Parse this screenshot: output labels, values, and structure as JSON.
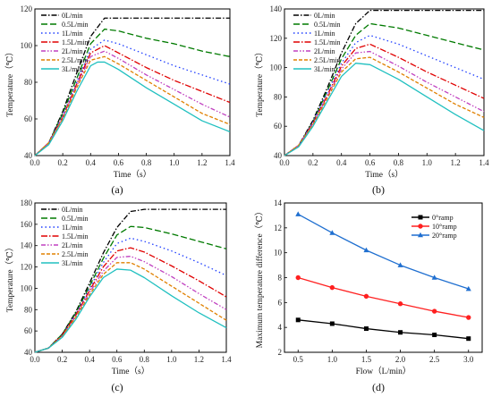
{
  "chart_data": [
    {
      "type": "line",
      "panel_label": "(a)",
      "xlabel": "Time（s）",
      "ylabel": "Temperature（℃）",
      "xlim": [
        0.0,
        1.4
      ],
      "ylim": [
        40,
        120
      ],
      "xticks": [
        "0.0",
        "0.2",
        "0.4",
        "0.6",
        "0.8",
        "1.0",
        "1.2",
        "1.4"
      ],
      "yticks": [
        "40",
        "60",
        "80",
        "100",
        "120"
      ],
      "legend_position": "top-left",
      "grid": false,
      "series": [
        {
          "name": "0L/min",
          "color": "#000000",
          "dash": "6,2,1.5,2",
          "x": [
            0,
            0.1,
            0.2,
            0.3,
            0.4,
            0.5,
            0.6,
            0.8,
            1.0,
            1.2,
            1.4
          ],
          "y": [
            40,
            47,
            64,
            85,
            105,
            115,
            115,
            115,
            115,
            115,
            115
          ]
        },
        {
          "name": "0.5L/min",
          "color": "#007a00",
          "dash": "7,3",
          "x": [
            0,
            0.1,
            0.2,
            0.3,
            0.4,
            0.5,
            0.6,
            0.8,
            1.0,
            1.2,
            1.4
          ],
          "y": [
            40,
            47,
            63,
            82,
            101,
            109,
            108,
            104,
            101,
            97,
            94
          ]
        },
        {
          "name": "1L/min",
          "color": "#1f3fff",
          "dash": "1.5,3",
          "x": [
            0,
            0.1,
            0.2,
            0.3,
            0.4,
            0.5,
            0.6,
            0.8,
            1.0,
            1.2,
            1.4
          ],
          "y": [
            40,
            47,
            62,
            80,
            98,
            103,
            101,
            95,
            89,
            84,
            79
          ]
        },
        {
          "name": "1.5L/min",
          "color": "#e00000",
          "dash": "7,2,1.5,2",
          "x": [
            0,
            0.1,
            0.2,
            0.3,
            0.4,
            0.5,
            0.6,
            0.8,
            1.0,
            1.2,
            1.4
          ],
          "y": [
            40,
            47,
            61,
            79,
            96,
            100,
            96,
            88,
            81,
            75,
            69
          ]
        },
        {
          "name": "2L/min",
          "color": "#c040c0",
          "dash": "5,2,1.5,2,1.5,2",
          "x": [
            0,
            0.1,
            0.2,
            0.3,
            0.4,
            0.5,
            0.6,
            0.8,
            1.0,
            1.2,
            1.4
          ],
          "y": [
            40,
            47,
            61,
            78,
            94,
            97,
            93,
            84,
            76,
            68,
            61
          ]
        },
        {
          "name": "2.5L/min",
          "color": "#e08000",
          "dash": "4,2",
          "x": [
            0,
            0.1,
            0.2,
            0.3,
            0.4,
            0.5,
            0.6,
            0.8,
            1.0,
            1.2,
            1.4
          ],
          "y": [
            40,
            47,
            60,
            77,
            92,
            94,
            90,
            81,
            72,
            63,
            57
          ]
        },
        {
          "name": "3L/min",
          "color": "#20c0c0",
          "dash": "",
          "x": [
            0,
            0.1,
            0.2,
            0.3,
            0.4,
            0.45,
            0.5,
            0.6,
            0.8,
            1.0,
            1.2,
            1.4
          ],
          "y": [
            40,
            46,
            59,
            75,
            89,
            91,
            91,
            87,
            77,
            68,
            59,
            53
          ]
        }
      ]
    },
    {
      "type": "line",
      "panel_label": "(b)",
      "xlabel": "Time（s）",
      "ylabel": "Temperature（℃）",
      "xlim": [
        0.0,
        1.4
      ],
      "ylim": [
        40,
        140
      ],
      "xticks": [
        "0.0",
        "0.2",
        "0.4",
        "0.6",
        "0.8",
        "1.0",
        "1.2",
        "1.4"
      ],
      "yticks": [
        "40",
        "60",
        "80",
        "100",
        "120",
        "140"
      ],
      "legend_position": "top-left",
      "grid": false,
      "series": [
        {
          "name": "0L/min",
          "color": "#000000",
          "dash": "6,2,1.5,2",
          "x": [
            0,
            0.1,
            0.2,
            0.3,
            0.4,
            0.5,
            0.6,
            0.8,
            1.0,
            1.2,
            1.4
          ],
          "y": [
            40,
            47,
            64,
            86,
            110,
            130,
            139,
            139,
            139,
            139,
            139
          ]
        },
        {
          "name": "0.5L/min",
          "color": "#007a00",
          "dash": "7,3",
          "x": [
            0,
            0.1,
            0.2,
            0.3,
            0.4,
            0.5,
            0.6,
            0.8,
            1.0,
            1.2,
            1.4
          ],
          "y": [
            40,
            47,
            63,
            84,
            106,
            122,
            130,
            127,
            122,
            117,
            112
          ]
        },
        {
          "name": "1L/min",
          "color": "#1f3fff",
          "dash": "1.5,3",
          "x": [
            0,
            0.1,
            0.2,
            0.3,
            0.4,
            0.5,
            0.6,
            0.8,
            1.0,
            1.2,
            1.4
          ],
          "y": [
            40,
            47,
            63,
            83,
            103,
            117,
            122,
            116,
            108,
            100,
            92
          ]
        },
        {
          "name": "1.5L/min",
          "color": "#e00000",
          "dash": "7,2,1.5,2",
          "x": [
            0,
            0.1,
            0.2,
            0.3,
            0.4,
            0.5,
            0.6,
            0.8,
            1.0,
            1.2,
            1.4
          ],
          "y": [
            40,
            47,
            62,
            81,
            101,
            113,
            116,
            107,
            97,
            88,
            79
          ]
        },
        {
          "name": "2L/min",
          "color": "#c040c0",
          "dash": "5,2,1.5,2,1.5,2",
          "x": [
            0,
            0.1,
            0.2,
            0.3,
            0.4,
            0.5,
            0.6,
            0.8,
            1.0,
            1.2,
            1.4
          ],
          "y": [
            40,
            47,
            62,
            80,
            99,
            110,
            111,
            101,
            90,
            80,
            70
          ]
        },
        {
          "name": "2.5L/min",
          "color": "#e08000",
          "dash": "4,2",
          "x": [
            0,
            0.1,
            0.2,
            0.3,
            0.4,
            0.5,
            0.6,
            0.8,
            1.0,
            1.2,
            1.4
          ],
          "y": [
            40,
            47,
            61,
            79,
            97,
            106,
            107,
            97,
            86,
            75,
            66
          ]
        },
        {
          "name": "3L/min",
          "color": "#20c0c0",
          "dash": "",
          "x": [
            0,
            0.1,
            0.2,
            0.3,
            0.4,
            0.5,
            0.6,
            0.8,
            1.0,
            1.2,
            1.4
          ],
          "y": [
            40,
            46,
            60,
            77,
            94,
            103,
            102,
            92,
            80,
            68,
            57
          ]
        }
      ]
    },
    {
      "type": "line",
      "panel_label": "(c)",
      "xlabel": "Time（s）",
      "ylabel": "Temperature（℃）",
      "xlim": [
        0.0,
        1.4
      ],
      "ylim": [
        40,
        180
      ],
      "xticks": [
        "0.0",
        "0.2",
        "0.4",
        "0.6",
        "0.8",
        "1.0",
        "1.2",
        "1.4"
      ],
      "yticks": [
        "40",
        "60",
        "80",
        "100",
        "120",
        "140",
        "160",
        "180"
      ],
      "legend_position": "top-left",
      "grid": false,
      "series": [
        {
          "name": "0L/min",
          "color": "#000000",
          "dash": "6,2,1.5,2",
          "x": [
            0,
            0.1,
            0.2,
            0.3,
            0.4,
            0.5,
            0.6,
            0.7,
            0.8,
            1.0,
            1.2,
            1.4
          ],
          "y": [
            40,
            44,
            57,
            78,
            105,
            133,
            157,
            172,
            174,
            174,
            174,
            174
          ]
        },
        {
          "name": "0.5L/min",
          "color": "#007a00",
          "dash": "7,3",
          "x": [
            0,
            0.1,
            0.2,
            0.3,
            0.4,
            0.5,
            0.6,
            0.7,
            0.8,
            1.0,
            1.2,
            1.4
          ],
          "y": [
            40,
            44,
            57,
            77,
            102,
            128,
            150,
            158,
            157,
            151,
            144,
            137
          ]
        },
        {
          "name": "1L/min",
          "color": "#1f3fff",
          "dash": "1.5,3",
          "x": [
            0,
            0.1,
            0.2,
            0.3,
            0.4,
            0.5,
            0.6,
            0.7,
            0.8,
            1.0,
            1.2,
            1.4
          ],
          "y": [
            40,
            44,
            56,
            76,
            100,
            124,
            142,
            147,
            144,
            135,
            124,
            112
          ]
        },
        {
          "name": "1.5L/min",
          "color": "#e00000",
          "dash": "7,2,1.5,2",
          "x": [
            0,
            0.1,
            0.2,
            0.3,
            0.4,
            0.5,
            0.6,
            0.7,
            0.8,
            1.0,
            1.2,
            1.4
          ],
          "y": [
            40,
            44,
            56,
            75,
            98,
            120,
            135,
            138,
            134,
            121,
            107,
            92
          ]
        },
        {
          "name": "2L/min",
          "color": "#c040c0",
          "dash": "5,2,1.5,2,1.5,2",
          "x": [
            0,
            0.1,
            0.2,
            0.3,
            0.4,
            0.5,
            0.6,
            0.7,
            0.8,
            1.0,
            1.2,
            1.4
          ],
          "y": [
            40,
            44,
            55,
            74,
            96,
            116,
            129,
            130,
            125,
            111,
            95,
            80
          ]
        },
        {
          "name": "2.5L/min",
          "color": "#e08000",
          "dash": "4,2",
          "x": [
            0,
            0.1,
            0.2,
            0.3,
            0.4,
            0.5,
            0.6,
            0.7,
            0.8,
            1.0,
            1.2,
            1.4
          ],
          "y": [
            40,
            44,
            55,
            73,
            94,
            113,
            124,
            124,
            118,
            102,
            86,
            70
          ]
        },
        {
          "name": "3L/min",
          "color": "#20c0c0",
          "dash": "",
          "x": [
            0,
            0.1,
            0.2,
            0.3,
            0.4,
            0.5,
            0.6,
            0.7,
            0.8,
            1.0,
            1.2,
            1.4
          ],
          "y": [
            40,
            44,
            54,
            71,
            92,
            110,
            118,
            117,
            110,
            93,
            77,
            63
          ]
        }
      ]
    },
    {
      "type": "line",
      "panel_label": "(d)",
      "xlabel": "Flow（L/min）",
      "ylabel": "Maximum temperature difference（℃）",
      "xlim": [
        0.3,
        3.2
      ],
      "ylim": [
        2,
        14
      ],
      "xtick_values": [
        0.5,
        1.0,
        1.5,
        2.0,
        2.5,
        3.0
      ],
      "xticks": [
        "0.5",
        "1.0",
        "1.5",
        "2.0",
        "2.5",
        "3.0"
      ],
      "yticks": [
        "2",
        "4",
        "6",
        "8",
        "10",
        "12",
        "14"
      ],
      "legend_position": "top-right",
      "grid": false,
      "series": [
        {
          "name": "0°ramp",
          "color": "#000000",
          "marker": "square",
          "x": [
            0.5,
            1.0,
            1.5,
            2.0,
            2.5,
            3.0
          ],
          "y": [
            4.6,
            4.3,
            3.9,
            3.6,
            3.4,
            3.1
          ]
        },
        {
          "name": "10°ramp",
          "color": "#ff2020",
          "marker": "circle",
          "x": [
            0.5,
            1.0,
            1.5,
            2.0,
            2.5,
            3.0
          ],
          "y": [
            8.0,
            7.2,
            6.5,
            5.9,
            5.3,
            4.8
          ]
        },
        {
          "name": "20°ramp",
          "color": "#1f6fd0",
          "marker": "triangle",
          "x": [
            0.5,
            1.0,
            1.5,
            2.0,
            2.5,
            3.0
          ],
          "y": [
            13.1,
            11.6,
            10.2,
            9.0,
            8.0,
            7.1
          ]
        }
      ]
    }
  ]
}
